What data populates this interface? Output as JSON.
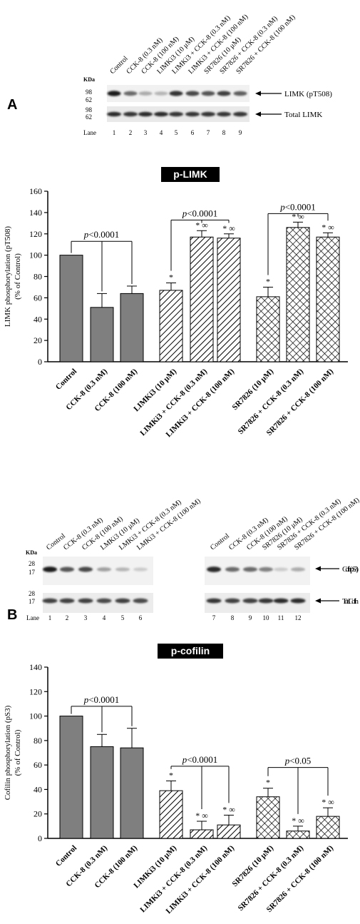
{
  "figure": {
    "panel_a": {
      "label": "A",
      "blot": {
        "kda_label": "KDa",
        "lane_label": "Lane",
        "lane_headers": [
          "Control",
          "CCK-8 (0.3 nM)",
          "CCK-8 (100 nM)",
          "LIMKi3 (10 μM)",
          "LIMKi3 + CCK-8 (0.3 nM)",
          "LIMKi3 + CCK-8 (100 nM)",
          "SR7826 (10 μM)",
          "SR7826 + CCK-8 (0.3 nM)",
          "SR7826 + CCK-8 (100 nM)"
        ],
        "lane_numbers": [
          "1",
          "2",
          "3",
          "4",
          "5",
          "6",
          "7",
          "8",
          "9"
        ],
        "markers_top": [
          "98",
          "62"
        ],
        "markers_bottom": [
          "98",
          "62"
        ],
        "band_labels": [
          "LIMK (pT508)",
          "Total LIMK"
        ],
        "band_intensity_top": [
          0.95,
          0.6,
          0.3,
          0.25,
          0.85,
          0.75,
          0.7,
          0.8,
          0.65
        ],
        "band_intensity_bottom": [
          0.9,
          0.85,
          0.9,
          0.9,
          0.85,
          0.85,
          0.85,
          0.85,
          0.85
        ]
      }
    },
    "panel_b": {
      "label": "B",
      "blot": {
        "kda_label": "KDa",
        "lane_label": "Lane",
        "lane_headers_left": [
          "Control",
          "CCK-8 (0.3 nM)",
          "CCK-8 (100 nM)",
          "LMKi3 (10 μM)",
          "LMKi3 + CCK-8 (0.3 nM)",
          "LMKi3 + CCK-8 (100 nM)"
        ],
        "lane_headers_right": [
          "Control",
          "CCK-8 (0.3 nM)",
          "CCK-8 (100 nM)",
          "SR7826 (10 μM)",
          "SR7826 + CCK-8 (0.3 nM)",
          "SR7826 + CCK-8 (100 nM)"
        ],
        "lane_numbers_left": [
          "1",
          "2",
          "3",
          "4",
          "5",
          "6"
        ],
        "lane_numbers_right": [
          "7",
          "8",
          "9",
          "10",
          "11",
          "12"
        ],
        "markers_top": [
          "28",
          "17"
        ],
        "markers_bottom": [
          "28",
          "17"
        ],
        "band_labels": [
          "Cofilin (pS3)",
          "Total Cofilin"
        ],
        "band_intensity_top": [
          0.95,
          0.7,
          0.75,
          0.35,
          0.25,
          0.15,
          0.9,
          0.6,
          0.6,
          0.5,
          0.15,
          0.3
        ],
        "band_intensity_bottom": [
          0.8,
          0.8,
          0.8,
          0.75,
          0.8,
          0.75,
          0.85,
          0.8,
          0.8,
          0.85,
          0.9,
          0.9
        ]
      }
    }
  },
  "chart_data": [
    {
      "type": "bar",
      "title": "p-LIMK",
      "ylabel": "LIMK phosphorylation (pT508)",
      "ylabel2": "(% of Control)",
      "ylim": [
        0,
        160
      ],
      "yticks": [
        "0",
        "20",
        "40",
        "60",
        "80",
        "100",
        "120",
        "140",
        "160"
      ],
      "categories": [
        "Control",
        "CCK-8 (0.3 nM)",
        "CCK-8 (100 nM)",
        "LIMKi3 (10 μM)",
        "LIMKi3 + CCK-8 (0.3 nM)",
        "LIMKi3 + CCK-8 (100 nM)",
        "SR7826 (10 μM)",
        "SR7826 + CCK-8 (0.3 nM)",
        "SR7826 + CCK-8 (100 nM)"
      ],
      "values": [
        100,
        51,
        64,
        67,
        117,
        116,
        61,
        126,
        117
      ],
      "errors": [
        0,
        13,
        7,
        7,
        6,
        4,
        9,
        5,
        4
      ],
      "patterns": [
        "solid",
        "solid",
        "solid",
        "diag",
        "diag",
        "diag",
        "cross",
        "cross",
        "cross"
      ],
      "annotations": [
        "",
        "",
        "",
        "*",
        "* ∞",
        "* ∞",
        "*",
        "* ∞",
        "* ∞"
      ],
      "brackets": [
        {
          "label": "p<0.0001",
          "p": "p",
          "rest": "<0.0001",
          "bars": [
            0,
            1,
            2
          ],
          "level": 113
        },
        {
          "label": "p<0.0001",
          "p": "p",
          "rest": "<0.0001",
          "bars": [
            3,
            4,
            5
          ],
          "level": 133
        },
        {
          "label": "p<0.0001",
          "p": "p",
          "rest": "<0.0001",
          "bars": [
            6,
            7,
            8
          ],
          "level": 139
        }
      ]
    },
    {
      "type": "bar",
      "title": "p-cofilin",
      "ylabel": "Cofilin phosphorylation (pS3)",
      "ylabel2": "(% of Control)",
      "ylim": [
        0,
        140
      ],
      "yticks": [
        "0",
        "20",
        "40",
        "60",
        "80",
        "100",
        "120",
        "140"
      ],
      "categories": [
        "Control",
        "CCK-8 (0.3 nM)",
        "CCK-8 (100 nM)",
        "LIMKi3 (10 μM)",
        "LIMKi3 + CCK-8 (0.3 nM)",
        "LIMKi3 + CCK-8 (100 nM)",
        "SR7826 (10 μM)",
        "SR7826 + CCK-8 (0.3 nM)",
        "SR7826 + CCK-8 (100 nM)"
      ],
      "values": [
        100,
        75,
        74,
        39,
        7,
        11,
        34,
        6,
        18
      ],
      "errors": [
        0,
        10,
        16,
        8,
        7,
        8,
        7,
        4,
        7
      ],
      "patterns": [
        "solid",
        "solid",
        "solid",
        "diag",
        "diag",
        "diag",
        "cross",
        "cross",
        "cross"
      ],
      "annotations": [
        "",
        "",
        "",
        "*",
        "* ∞",
        "* ∞",
        "*",
        "* ∞",
        "* ∞"
      ],
      "brackets": [
        {
          "label": "p<0.0001",
          "p": "p",
          "rest": "<0.0001",
          "bars": [
            0,
            1,
            2
          ],
          "level": 108
        },
        {
          "label": "p<0.0001",
          "p": "p",
          "rest": "<0.0001",
          "bars": [
            3,
            4,
            5
          ],
          "level": 59
        },
        {
          "label": "p<0.05",
          "p": "p",
          "rest": "<0.05",
          "bars": [
            6,
            7,
            8
          ],
          "level": 58
        }
      ]
    }
  ]
}
